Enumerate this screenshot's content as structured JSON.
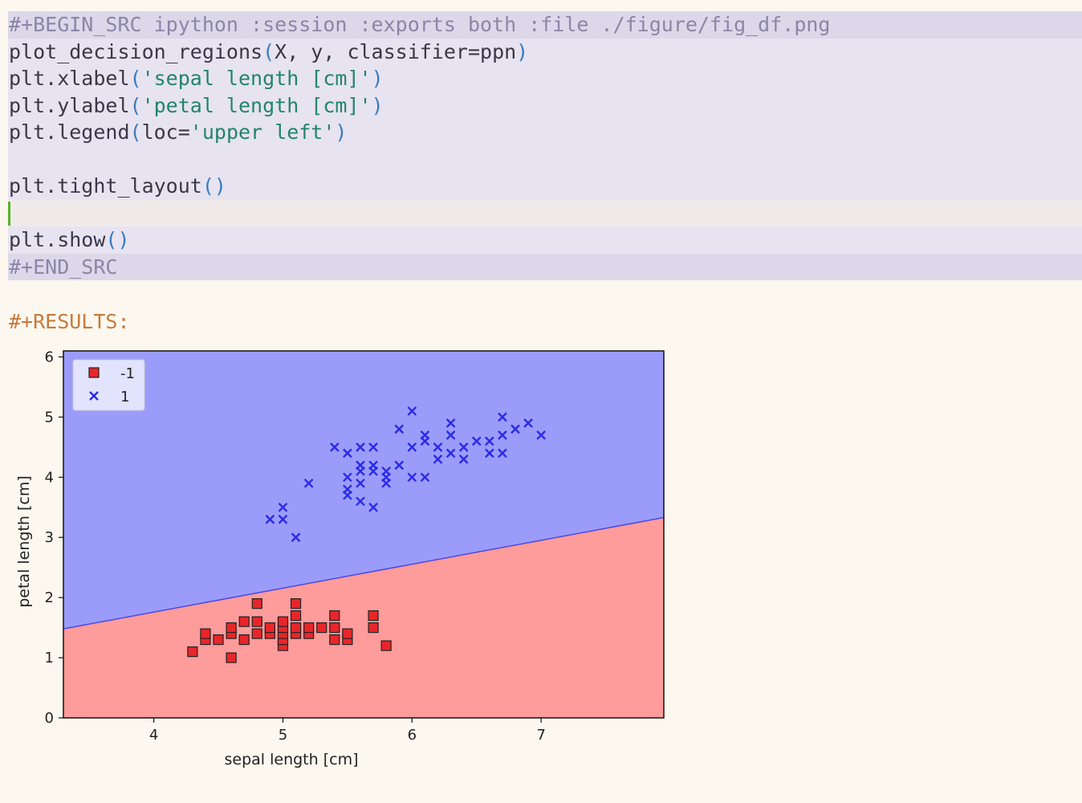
{
  "editor": {
    "begin_src": "#+BEGIN_SRC ipython :session :exports both :file ./figure/fig_df.png",
    "line1": {
      "func": "plot_decision_regions",
      "args": "X, y, classifier=ppn"
    },
    "line2": {
      "func": "plt.xlabel",
      "arg": "'sepal length [cm]'"
    },
    "line3": {
      "func": "plt.ylabel",
      "arg": "'petal length [cm]'"
    },
    "line4": {
      "func": "plt.legend",
      "kw": "loc=",
      "arg": "'upper left'"
    },
    "line6": {
      "func": "plt.tight_layout"
    },
    "line8": {
      "func": "plt.show"
    },
    "end_src": "#+END_SRC"
  },
  "results_label": "#+RESULTS:",
  "colors": {
    "region_positive": "#9b9cfa",
    "region_negative": "#fe9b9b",
    "boundary": "#4a4ae0",
    "marker_negative": "#e8262a",
    "marker_positive": "#2b2be6"
  },
  "chart_data": {
    "type": "scatter",
    "title": "",
    "xlabel": "sepal length [cm]",
    "ylabel": "petal length [cm]",
    "xlim": [
      3.3,
      7.95
    ],
    "ylim": [
      0,
      6.1
    ],
    "xticks": [
      4,
      5,
      6,
      7
    ],
    "yticks": [
      0,
      1,
      2,
      3,
      4,
      5,
      6
    ],
    "legend_placement": "upper-left",
    "grid": false,
    "decision_boundary": {
      "x": [
        3.3,
        7.95
      ],
      "y": [
        1.48,
        3.33
      ]
    },
    "series": [
      {
        "name": "-1",
        "marker": "square",
        "points": [
          [
            4.3,
            1.1
          ],
          [
            4.4,
            1.3
          ],
          [
            4.4,
            1.4
          ],
          [
            4.5,
            1.3
          ],
          [
            4.6,
            1.0
          ],
          [
            4.6,
            1.4
          ],
          [
            4.6,
            1.5
          ],
          [
            4.7,
            1.3
          ],
          [
            4.7,
            1.6
          ],
          [
            4.8,
            1.4
          ],
          [
            4.8,
            1.6
          ],
          [
            4.8,
            1.9
          ],
          [
            4.9,
            1.4
          ],
          [
            4.9,
            1.5
          ],
          [
            5.0,
            1.2
          ],
          [
            5.0,
            1.3
          ],
          [
            5.0,
            1.4
          ],
          [
            5.0,
            1.5
          ],
          [
            5.0,
            1.6
          ],
          [
            5.1,
            1.4
          ],
          [
            5.1,
            1.5
          ],
          [
            5.1,
            1.7
          ],
          [
            5.1,
            1.9
          ],
          [
            5.2,
            1.4
          ],
          [
            5.2,
            1.5
          ],
          [
            5.3,
            1.5
          ],
          [
            5.4,
            1.3
          ],
          [
            5.4,
            1.5
          ],
          [
            5.4,
            1.7
          ],
          [
            5.5,
            1.3
          ],
          [
            5.5,
            1.4
          ],
          [
            5.7,
            1.5
          ],
          [
            5.7,
            1.7
          ],
          [
            5.8,
            1.2
          ]
        ]
      },
      {
        "name": "1",
        "marker": "x",
        "points": [
          [
            4.9,
            3.3
          ],
          [
            5.0,
            3.3
          ],
          [
            5.0,
            3.5
          ],
          [
            5.1,
            3.0
          ],
          [
            5.2,
            3.9
          ],
          [
            5.4,
            4.5
          ],
          [
            5.5,
            3.7
          ],
          [
            5.5,
            3.8
          ],
          [
            5.5,
            4.0
          ],
          [
            5.5,
            4.4
          ],
          [
            5.6,
            3.6
          ],
          [
            5.6,
            3.9
          ],
          [
            5.6,
            4.1
          ],
          [
            5.6,
            4.2
          ],
          [
            5.6,
            4.5
          ],
          [
            5.7,
            3.5
          ],
          [
            5.7,
            4.1
          ],
          [
            5.7,
            4.2
          ],
          [
            5.7,
            4.5
          ],
          [
            5.8,
            3.9
          ],
          [
            5.8,
            4.0
          ],
          [
            5.8,
            4.1
          ],
          [
            5.9,
            4.2
          ],
          [
            5.9,
            4.8
          ],
          [
            6.0,
            4.0
          ],
          [
            6.0,
            4.5
          ],
          [
            6.0,
            5.1
          ],
          [
            6.1,
            4.0
          ],
          [
            6.1,
            4.6
          ],
          [
            6.1,
            4.7
          ],
          [
            6.2,
            4.3
          ],
          [
            6.2,
            4.5
          ],
          [
            6.3,
            4.4
          ],
          [
            6.3,
            4.7
          ],
          [
            6.3,
            4.9
          ],
          [
            6.4,
            4.3
          ],
          [
            6.4,
            4.5
          ],
          [
            6.5,
            4.6
          ],
          [
            6.6,
            4.4
          ],
          [
            6.6,
            4.6
          ],
          [
            6.7,
            4.4
          ],
          [
            6.7,
            4.7
          ],
          [
            6.7,
            5.0
          ],
          [
            6.8,
            4.8
          ],
          [
            6.9,
            4.9
          ],
          [
            7.0,
            4.7
          ]
        ]
      }
    ]
  }
}
